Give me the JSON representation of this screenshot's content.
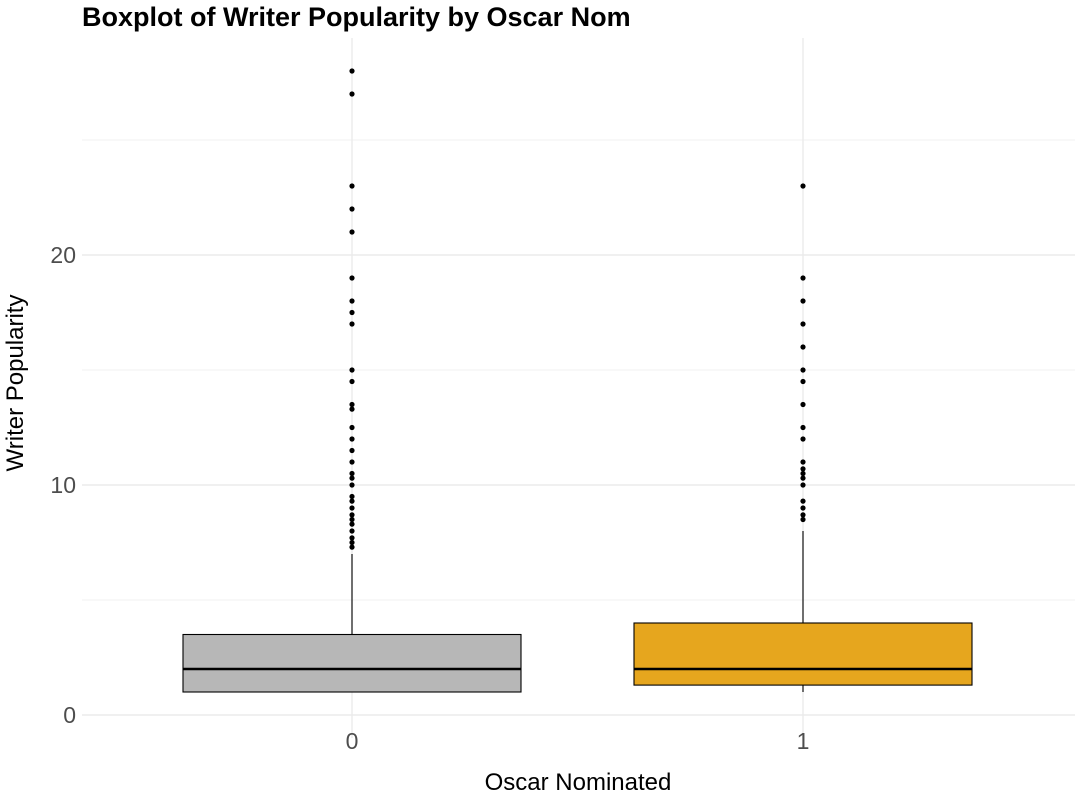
{
  "chart_data": {
    "type": "boxplot",
    "title": "Boxplot of Writer Popularity by Oscar Nom",
    "xlabel": "Oscar Nominated",
    "ylabel": "Writer Popularity",
    "ylim": [
      -1,
      29
    ],
    "yticks": [
      0,
      10,
      20
    ],
    "ytick_labels": [
      "0",
      "10",
      "20"
    ],
    "grid": true,
    "categories": [
      "0",
      "1"
    ],
    "colors": [
      "#b7b7b7",
      "#e6a61e"
    ],
    "boxes": [
      {
        "category": "0",
        "fill": "#b7b7b7",
        "q1": 1.0,
        "median": 2.0,
        "q3": 3.5,
        "whisker_low": 1.0,
        "whisker_high": 7.0,
        "outliers": [
          7.3,
          7.5,
          7.7,
          8.0,
          8.3,
          8.5,
          8.7,
          9.0,
          9.3,
          9.5,
          10.0,
          10.3,
          10.5,
          11.0,
          11.5,
          12.0,
          12.5,
          13.3,
          13.5,
          14.5,
          15.0,
          17.0,
          17.5,
          18.0,
          19.0,
          21.0,
          22.0,
          23.0,
          27.0,
          28.0
        ]
      },
      {
        "category": "1",
        "fill": "#e6a61e",
        "q1": 1.3,
        "median": 2.0,
        "q3": 4.0,
        "whisker_low": 1.0,
        "whisker_high": 8.0,
        "outliers": [
          8.5,
          8.7,
          9.0,
          9.3,
          10.0,
          10.3,
          10.5,
          10.7,
          11.0,
          12.0,
          12.5,
          13.5,
          14.5,
          15.0,
          16.0,
          17.0,
          18.0,
          19.0,
          23.0
        ]
      }
    ]
  }
}
